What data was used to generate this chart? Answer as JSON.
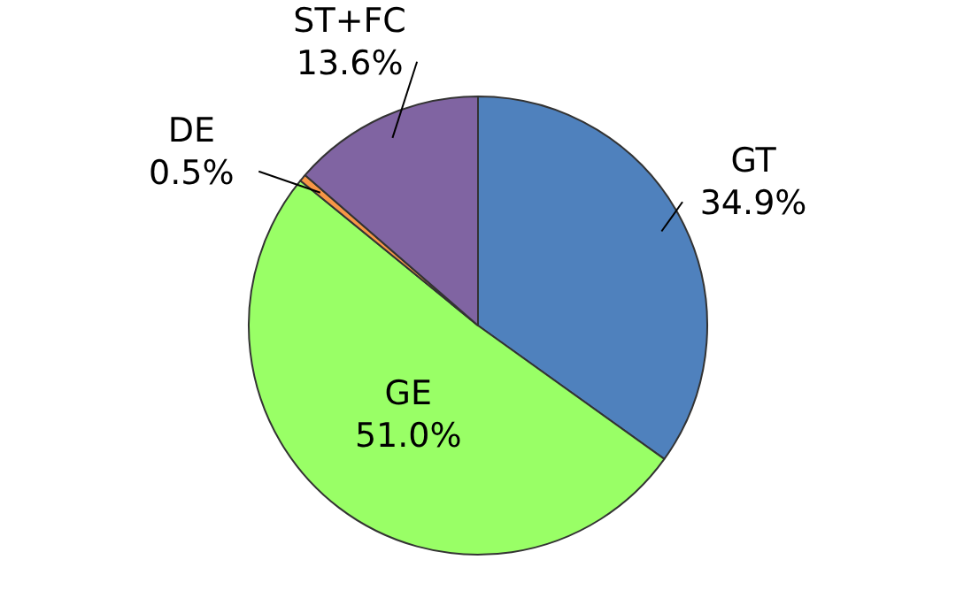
{
  "chart_data": {
    "type": "pie",
    "categories": [
      "GT",
      "GE",
      "DE",
      "ST+FC"
    ],
    "values": [
      34.9,
      51.0,
      0.5,
      13.6
    ],
    "colors": [
      "#4f81bd",
      "#99ff66",
      "#f79646",
      "#8064a2"
    ],
    "value_labels": [
      "34.9%",
      "51.0%",
      "0.5%",
      "13.6%"
    ],
    "legend": false
  }
}
